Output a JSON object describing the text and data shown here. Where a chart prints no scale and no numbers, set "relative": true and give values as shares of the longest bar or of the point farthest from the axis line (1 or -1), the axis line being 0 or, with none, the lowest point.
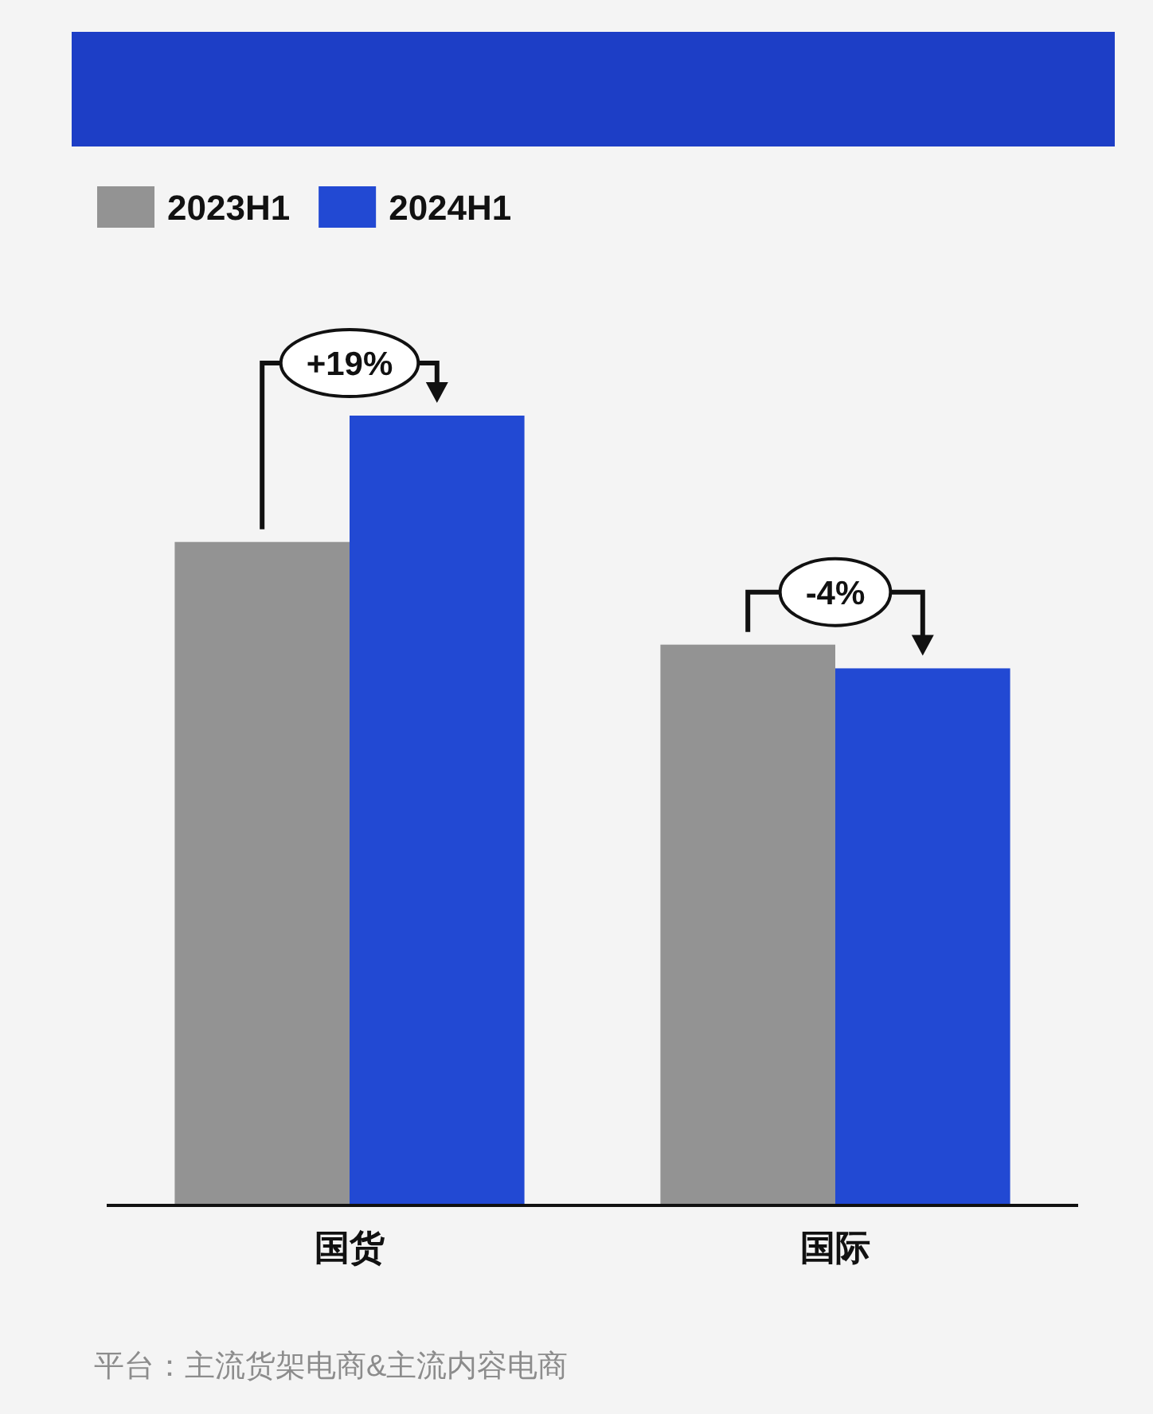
{
  "chart_data": {
    "type": "bar",
    "relative": true,
    "categories": [
      "国货",
      "国际"
    ],
    "series": [
      {
        "name": "2023H1",
        "color": "#939393",
        "values": [
          0.84,
          0.71
        ]
      },
      {
        "name": "2024H1",
        "color": "#2249d3",
        "values": [
          1,
          0.68
        ]
      }
    ],
    "legend": "top left",
    "annotations": [
      "+19%",
      "-4%",
      "平台：主流货架电商&主流内容电商"
    ]
  }
}
